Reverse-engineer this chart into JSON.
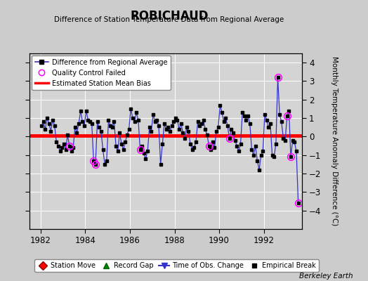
{
  "title": "ROBICHAUD",
  "subtitle": "Difference of Station Temperature Data from Regional Average",
  "ylabel": "Monthly Temperature Anomaly Difference (°C)",
  "xlabel_bottom": "Berkeley Earth",
  "bias": 0.05,
  "xlim": [
    1981.5,
    1993.7
  ],
  "ylim": [
    -5,
    4.5
  ],
  "yticks": [
    -4,
    -3,
    -2,
    -1,
    0,
    1,
    2,
    3,
    4
  ],
  "xticks": [
    1982,
    1984,
    1986,
    1988,
    1990,
    1992
  ],
  "bg_color": "#cccccc",
  "plot_bg_color": "#d4d4d4",
  "line_color": "#3333cc",
  "bias_color": "red",
  "time_series": [
    [
      1982.0417,
      0.6
    ],
    [
      1982.125,
      0.8
    ],
    [
      1982.2083,
      0.4
    ],
    [
      1982.2917,
      1.0
    ],
    [
      1982.375,
      0.7
    ],
    [
      1982.4583,
      0.3
    ],
    [
      1982.5417,
      0.9
    ],
    [
      1982.625,
      0.6
    ],
    [
      1982.7083,
      -0.3
    ],
    [
      1982.7917,
      -0.5
    ],
    [
      1982.875,
      -0.8
    ],
    [
      1982.9583,
      -0.6
    ],
    [
      1983.0417,
      -0.4
    ],
    [
      1983.125,
      -0.7
    ],
    [
      1983.2083,
      0.1
    ],
    [
      1983.2917,
      -0.5
    ],
    [
      1983.375,
      -0.8
    ],
    [
      1983.4583,
      -0.6
    ],
    [
      1983.5417,
      0.5
    ],
    [
      1983.625,
      0.2
    ],
    [
      1983.7083,
      0.7
    ],
    [
      1983.7917,
      1.4
    ],
    [
      1983.875,
      0.8
    ],
    [
      1983.9583,
      0.6
    ],
    [
      1984.0417,
      1.4
    ],
    [
      1984.125,
      0.9
    ],
    [
      1984.2083,
      0.8
    ],
    [
      1984.2917,
      0.7
    ],
    [
      1984.375,
      -1.3
    ],
    [
      1984.4583,
      -1.5
    ],
    [
      1984.5417,
      0.8
    ],
    [
      1984.625,
      0.5
    ],
    [
      1984.7083,
      0.3
    ],
    [
      1984.7917,
      -0.7
    ],
    [
      1984.875,
      -1.5
    ],
    [
      1984.9583,
      -1.3
    ],
    [
      1985.0417,
      0.9
    ],
    [
      1985.125,
      0.6
    ],
    [
      1985.2083,
      0.5
    ],
    [
      1985.2917,
      0.8
    ],
    [
      1985.375,
      -0.5
    ],
    [
      1985.4583,
      -0.8
    ],
    [
      1985.5417,
      0.2
    ],
    [
      1985.625,
      -0.4
    ],
    [
      1985.7083,
      -0.7
    ],
    [
      1985.7917,
      -0.3
    ],
    [
      1985.875,
      0.1
    ],
    [
      1985.9583,
      0.4
    ],
    [
      1986.0417,
      1.5
    ],
    [
      1986.125,
      1.0
    ],
    [
      1986.2083,
      0.8
    ],
    [
      1986.2917,
      1.3
    ],
    [
      1986.375,
      0.9
    ],
    [
      1986.4583,
      -0.7
    ],
    [
      1986.5417,
      -0.5
    ],
    [
      1986.625,
      -0.9
    ],
    [
      1986.7083,
      -1.2
    ],
    [
      1986.7917,
      -0.8
    ],
    [
      1986.875,
      0.5
    ],
    [
      1986.9583,
      0.3
    ],
    [
      1987.0417,
      1.2
    ],
    [
      1987.125,
      0.8
    ],
    [
      1987.2083,
      0.9
    ],
    [
      1987.2917,
      0.6
    ],
    [
      1987.375,
      -1.5
    ],
    [
      1987.4583,
      -0.4
    ],
    [
      1987.5417,
      0.7
    ],
    [
      1987.625,
      0.4
    ],
    [
      1987.7083,
      0.5
    ],
    [
      1987.7917,
      0.3
    ],
    [
      1987.875,
      0.6
    ],
    [
      1987.9583,
      0.8
    ],
    [
      1988.0417,
      1.0
    ],
    [
      1988.125,
      0.9
    ],
    [
      1988.2083,
      0.4
    ],
    [
      1988.2917,
      0.7
    ],
    [
      1988.375,
      0.2
    ],
    [
      1988.4583,
      -0.1
    ],
    [
      1988.5417,
      0.5
    ],
    [
      1988.625,
      0.3
    ],
    [
      1988.7083,
      -0.4
    ],
    [
      1988.7917,
      -0.7
    ],
    [
      1988.875,
      -0.6
    ],
    [
      1988.9583,
      -0.3
    ],
    [
      1989.0417,
      0.8
    ],
    [
      1989.125,
      0.6
    ],
    [
      1989.2083,
      0.7
    ],
    [
      1989.2917,
      0.9
    ],
    [
      1989.375,
      0.4
    ],
    [
      1989.4583,
      0.1
    ],
    [
      1989.5417,
      -0.5
    ],
    [
      1989.625,
      -0.7
    ],
    [
      1989.7083,
      -0.3
    ],
    [
      1989.7917,
      -0.6
    ],
    [
      1989.875,
      0.3
    ],
    [
      1989.9583,
      0.5
    ],
    [
      1990.0417,
      1.7
    ],
    [
      1990.125,
      1.3
    ],
    [
      1990.2083,
      0.8
    ],
    [
      1990.2917,
      1.0
    ],
    [
      1990.375,
      0.6
    ],
    [
      1990.4583,
      -0.1
    ],
    [
      1990.5417,
      0.4
    ],
    [
      1990.625,
      0.2
    ],
    [
      1990.7083,
      -0.2
    ],
    [
      1990.7917,
      -0.5
    ],
    [
      1990.875,
      -0.8
    ],
    [
      1990.9583,
      -0.4
    ],
    [
      1991.0417,
      1.3
    ],
    [
      1991.125,
      1.1
    ],
    [
      1991.2083,
      0.9
    ],
    [
      1991.2917,
      1.1
    ],
    [
      1991.375,
      0.7
    ],
    [
      1991.4583,
      -0.7
    ],
    [
      1991.5417,
      -1.0
    ],
    [
      1991.625,
      -0.5
    ],
    [
      1991.7083,
      -1.3
    ],
    [
      1991.7917,
      -1.8
    ],
    [
      1991.875,
      -1.0
    ],
    [
      1991.9583,
      -0.8
    ],
    [
      1992.0417,
      1.2
    ],
    [
      1992.125,
      0.9
    ],
    [
      1992.2083,
      0.5
    ],
    [
      1992.2917,
      0.7
    ],
    [
      1992.375,
      -1.0
    ],
    [
      1992.4583,
      -1.1
    ],
    [
      1992.5417,
      -0.4
    ],
    [
      1992.625,
      3.2
    ],
    [
      1992.7083,
      1.2
    ],
    [
      1992.7917,
      0.8
    ],
    [
      1992.875,
      -0.1
    ],
    [
      1992.9583,
      -0.2
    ],
    [
      1993.0417,
      1.1
    ],
    [
      1993.125,
      1.4
    ],
    [
      1993.2083,
      -1.1
    ],
    [
      1993.2917,
      -0.2
    ],
    [
      1993.375,
      -0.3
    ],
    [
      1993.4583,
      -0.8
    ],
    [
      1993.5417,
      -3.6
    ]
  ],
  "qc_failed": [
    [
      1983.2917,
      -0.5
    ],
    [
      1984.375,
      -1.3
    ],
    [
      1984.4583,
      -1.5
    ],
    [
      1986.4583,
      -0.7
    ],
    [
      1989.5417,
      -0.5
    ],
    [
      1990.4583,
      -0.1
    ],
    [
      1992.625,
      3.2
    ],
    [
      1993.0417,
      1.1
    ],
    [
      1993.2083,
      -1.1
    ],
    [
      1993.5417,
      -3.6
    ]
  ]
}
